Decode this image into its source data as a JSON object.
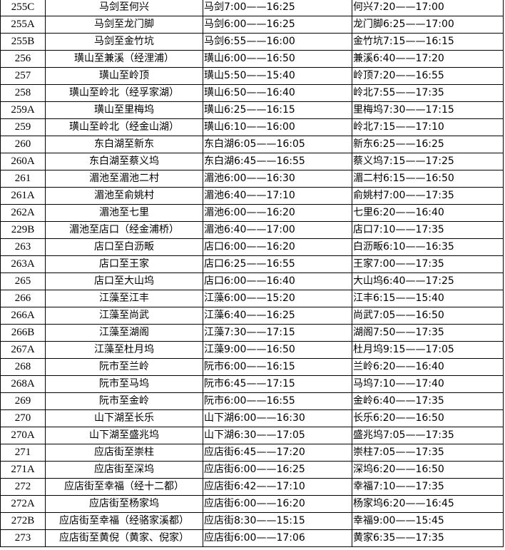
{
  "rows": [
    [
      "255C",
      "马剑至何兴",
      "马剑7:00——16:25",
      "何兴7:20——17:00"
    ],
    [
      "255A",
      "马剑至龙门脚",
      "马剑6:00——16:25",
      "龙门脚6:25——17:00"
    ],
    [
      "255B",
      "马剑至金竹坑",
      "马剑6:55——16:00",
      "金竹坑7:15——16:15"
    ],
    [
      "256",
      "璜山至兼溪（经浬浦）",
      "璜山6:00——16:50",
      "兼溪6:40——17:20"
    ],
    [
      "257",
      "璜山至岭顶",
      "璜山5:50——15:40",
      "岭顶7:20——16:55"
    ],
    [
      "258",
      "璜山至岭北（经孚家湖）",
      "璜山6:50——16:40",
      "岭北7:55——17:35"
    ],
    [
      "259A",
      "璜山至里梅坞",
      "璜山6:25——16:15",
      "里梅坞7:30——17:15"
    ],
    [
      "259",
      "璜山至岭北（经金山湖）",
      "璜山6:10——16:00",
      "岭北7:15——17:10"
    ],
    [
      "260",
      "东白湖至新东",
      "东白湖6:05——16:05",
      "新东6:25——16:25"
    ],
    [
      "260A",
      "东白湖至蔡义坞",
      "东白湖6:45——16:55",
      "蔡义坞7:15——17:25"
    ],
    [
      "261",
      "湄池至湄池二村",
      "湄池6:00——16:30",
      "湄二村6:15——16:50"
    ],
    [
      "261A",
      "湄池至俞姚村",
      "湄池6:40——17:10",
      "俞姚村7:00——17:35"
    ],
    [
      "262A",
      "湄池至七里",
      "湄池6:00——16:20",
      "七里6:20——16:40"
    ],
    [
      "229B",
      "湄池至店口（经金浦桥）",
      "湄池6:40——17:00",
      "店口7:10——17:35"
    ],
    [
      "263",
      "店口至白沥畈",
      "店口6:00——16:20",
      "白沥畈6:10——16:35"
    ],
    [
      "263A",
      "店口至王家",
      "店口6:25——16:55",
      "王家7:00——17:35"
    ],
    [
      "265",
      "店口至大山坞",
      "店口6:00——16:40",
      "大山坞6:40——17:25"
    ],
    [
      "266",
      "江藻至江丰",
      "江藻6:00——15:20",
      "江丰6:15——15:40"
    ],
    [
      "266A",
      "江藻至尚武",
      "江藻6:40——16:25",
      "尚武7:05——16:50"
    ],
    [
      "266B",
      "江藻至湖阁",
      "江藻7:30——17:15",
      "湖阁7:50——17:35"
    ],
    [
      "267A",
      "江藻至杜月坞",
      "江藻9:00——16:50",
      "杜月坞9:15——17:05"
    ],
    [
      "268",
      "阮市至兰岭",
      "阮市6:00——16:15",
      "兰岭6:20——16:40"
    ],
    [
      "268A",
      "阮市至马坞",
      "阮市6:45——17:15",
      "马坞7:10——17:40"
    ],
    [
      "269",
      "阮市至金岭",
      "阮市6:00——16:55",
      "金岭6:40——17:35"
    ],
    [
      "270",
      "山下湖至长乐",
      "山下湖6:00——16:30",
      "长乐6:20——16:50"
    ],
    [
      "270A",
      "山下湖至盛兆坞",
      "山下湖6:30——17:05",
      "盛兆坞7:05——17:35"
    ],
    [
      "271",
      "应店街至崇柱",
      "应店街6:45——17:20",
      "崇柱7:05——17:35"
    ],
    [
      "271A",
      "应店街至深坞",
      "应店街6:00——16:25",
      "深坞6:20——16:50"
    ],
    [
      "272",
      "应店街至幸福（经十二都）",
      "应店街6:42——17:10",
      "幸福7:10——17:35"
    ],
    [
      "272A",
      "应店街至杨家坞",
      "应店街6:00——16:20",
      "杨家坞6:20——16:45"
    ],
    [
      "272B",
      "应店街至幸福（经骆家溪都）",
      "应店街8:30——15:15",
      "幸福9:00——15:45"
    ],
    [
      "273",
      "应店街至黄倪（黄家、倪家）",
      "应店街6:00——17:06",
      "黄家6:35——17:35"
    ]
  ]
}
